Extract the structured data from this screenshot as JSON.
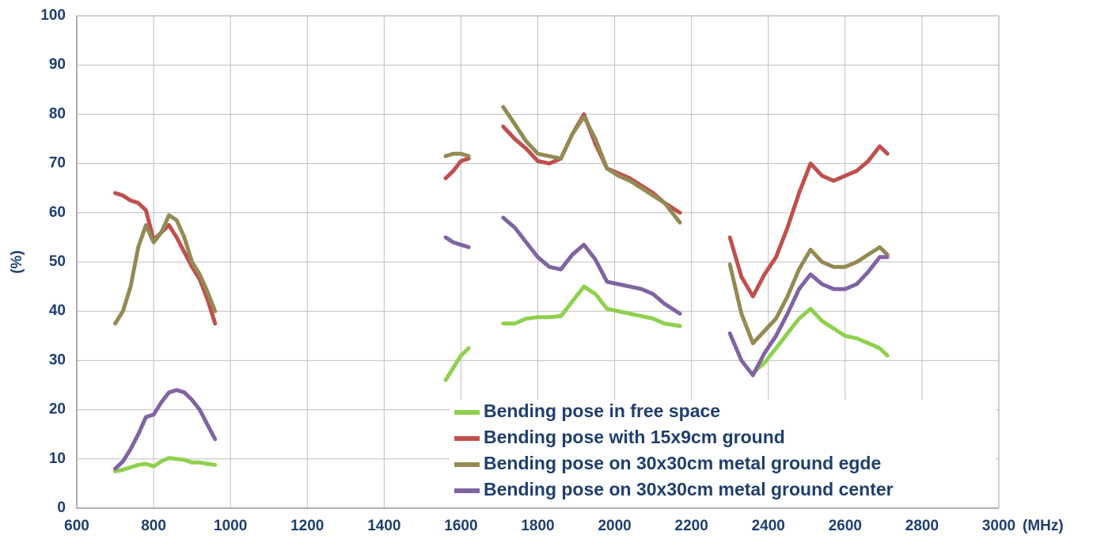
{
  "chart_data": {
    "type": "line",
    "x_label": "(MHz)",
    "y_label": "(%)",
    "x": [
      700,
      720,
      740,
      760,
      780,
      800,
      820,
      840,
      860,
      880,
      900,
      920,
      940,
      960,
      980,
      1560,
      1580,
      1600,
      1620,
      1660,
      1710,
      1740,
      1770,
      1800,
      1830,
      1860,
      1890,
      1920,
      1950,
      1980,
      2010,
      2040,
      2070,
      2100,
      2130,
      2170,
      2230,
      2300,
      2330,
      2360,
      2390,
      2420,
      2450,
      2480,
      2510,
      2540,
      2570,
      2600,
      2630,
      2660,
      2690,
      2710
    ],
    "series": [
      {
        "name": "Bending pose in free space",
        "color": "#8fd14f",
        "values": [
          7.5,
          7.8,
          8.3,
          8.8,
          9,
          8.5,
          9.5,
          10.2,
          10,
          9.8,
          9.3,
          9.3,
          9,
          8.8,
          null,
          26,
          28.5,
          31,
          32.5,
          null,
          37.5,
          37.5,
          38.5,
          38.8,
          38.8,
          39,
          42,
          45,
          43.5,
          40.5,
          40,
          39.5,
          39,
          38.5,
          37.5,
          37,
          null,
          null,
          null,
          27.5,
          29.5,
          32.5,
          35.5,
          38.5,
          40.5,
          38,
          36.5,
          35,
          34.5,
          33.5,
          32.5,
          31
        ]
      },
      {
        "name": "Bending pose with 15x9cm ground",
        "color": "#c0504d",
        "values": [
          64,
          63.5,
          62.5,
          62,
          60.5,
          54.5,
          56,
          57.5,
          55,
          52,
          49,
          46.5,
          42.5,
          37.5,
          null,
          67,
          68.5,
          70.5,
          71,
          null,
          77.5,
          75,
          73,
          70.5,
          70,
          71,
          76,
          80,
          74,
          69,
          68,
          67,
          65.5,
          64,
          62,
          60,
          null,
          55,
          47,
          43,
          47.5,
          51,
          57,
          64,
          70,
          67.5,
          66.5,
          67.5,
          68.5,
          70.5,
          73.5,
          72
        ]
      },
      {
        "name": "Bending pose on 30x30cm metal ground egde",
        "color": "#948a54",
        "values": [
          37.5,
          40,
          45,
          53,
          57.5,
          54,
          56,
          59.5,
          58.5,
          55,
          50,
          47.5,
          44,
          40,
          null,
          71.5,
          72,
          72,
          71.5,
          null,
          81.5,
          78,
          74.5,
          72,
          71.5,
          71,
          76,
          79.5,
          75,
          69,
          67.5,
          66.5,
          65,
          63.5,
          62,
          58,
          null,
          49.5,
          39.5,
          33.5,
          36,
          38.5,
          43,
          48.5,
          52.5,
          50,
          49,
          49,
          50,
          51.5,
          53,
          51.5
        ]
      },
      {
        "name": "Bending pose on 30x30cm metal ground center",
        "color": "#8064a2",
        "values": [
          8,
          9.5,
          12,
          15,
          18.5,
          19,
          21.5,
          23.5,
          24,
          23.5,
          22,
          20,
          17,
          14,
          null,
          55,
          54,
          53.5,
          53,
          null,
          59,
          57,
          54,
          51,
          49,
          48.5,
          51.5,
          53.5,
          50.5,
          46,
          45.5,
          45,
          44.5,
          43.5,
          41.5,
          39.5,
          null,
          35.5,
          30,
          27,
          31.5,
          35,
          39.5,
          44.5,
          47.5,
          45.5,
          44.5,
          44.5,
          45.5,
          48,
          51,
          51
        ]
      }
    ],
    "xlim": [
      600,
      3000
    ],
    "xticks": [
      600,
      800,
      1000,
      1200,
      1400,
      1600,
      1800,
      2000,
      2200,
      2400,
      2600,
      2800,
      3000
    ],
    "ylim": [
      0,
      100
    ],
    "yticks": [
      0,
      10,
      20,
      30,
      40,
      50,
      60,
      70,
      80,
      90,
      100
    ],
    "grid": true,
    "legend": "lower right"
  }
}
